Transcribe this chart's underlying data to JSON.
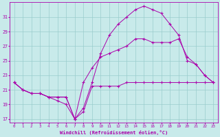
{
  "xlabel": "Windchill (Refroidissement éolien,°C)",
  "bg_color": "#c8eaea",
  "line_color": "#aa00aa",
  "grid_color": "#99cccc",
  "line1_y": [
    22.0,
    21.0,
    20.5,
    20.5,
    20.0,
    20.0,
    20.0,
    17.0,
    18.0,
    21.5,
    21.5,
    21.5,
    21.5,
    22.0,
    22.0,
    22.0,
    22.0,
    22.0,
    22.0,
    22.0,
    22.0,
    22.0,
    22.0,
    22.0
  ],
  "line2_y": [
    22.0,
    21.0,
    20.5,
    20.5,
    20.0,
    20.0,
    20.0,
    17.0,
    22.0,
    24.0,
    25.5,
    26.0,
    26.5,
    27.0,
    28.0,
    28.0,
    27.5,
    27.5,
    27.5,
    28.0,
    25.5,
    24.5,
    23.0,
    22.0
  ],
  "line3_y": [
    22.0,
    21.0,
    20.5,
    20.5,
    20.0,
    19.5,
    19.0,
    17.0,
    18.5,
    22.0,
    26.0,
    28.5,
    30.0,
    31.0,
    32.0,
    32.5,
    32.0,
    31.5,
    30.0,
    28.5,
    25.0,
    24.5,
    23.0,
    22.0
  ],
  "x": [
    0,
    1,
    2,
    3,
    4,
    5,
    6,
    7,
    8,
    9,
    10,
    11,
    12,
    13,
    14,
    15,
    16,
    17,
    18,
    19,
    20,
    21,
    22,
    23
  ],
  "ylim": [
    16.5,
    33.0
  ],
  "xlim": [
    -0.5,
    23.5
  ],
  "yticks": [
    17,
    19,
    21,
    23,
    25,
    27,
    29,
    31
  ],
  "xticks": [
    0,
    1,
    2,
    3,
    4,
    5,
    6,
    7,
    8,
    9,
    10,
    11,
    12,
    13,
    14,
    15,
    16,
    17,
    18,
    19,
    20,
    21,
    22,
    23
  ]
}
